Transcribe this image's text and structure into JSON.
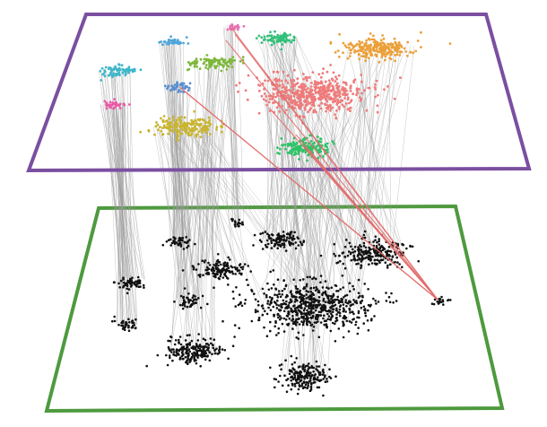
{
  "diagram": {
    "type": "multilayer-network",
    "layers": [
      {
        "name": "upper-layer",
        "border_color": "#7a4fa0"
      },
      {
        "name": "lower-layer",
        "border_color": "#4e9a3e"
      }
    ],
    "community_colors": {
      "cyan": "#3fb7c8",
      "sky": "#4fa6da",
      "pink": "#e572b1",
      "green": "#33c07a",
      "lime": "#7db83a",
      "steelblue": "#5a8fd0",
      "magenta": "#ea5aa6",
      "olive": "#c9b42e",
      "salmon": "#ef7b7b",
      "emerald": "#2ec267",
      "orange": "#eba03a"
    },
    "node_color_lower": "#111111",
    "interlayer_edge_color": "#999999",
    "highlight_edge_color": "#e36b6b"
  }
}
